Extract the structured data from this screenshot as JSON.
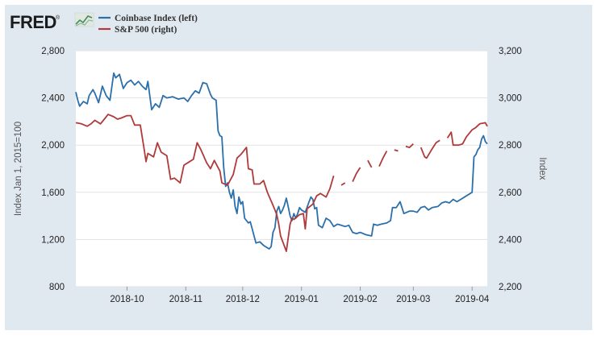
{
  "header": {
    "logo_text": "FRED",
    "logo_registered": "®"
  },
  "chart_data": {
    "type": "line",
    "title": "",
    "ylabel_left": "Index Jan 1, 2015=100",
    "ylabel_right": "Index",
    "ylim_left": [
      800,
      2800
    ],
    "ylim_right": [
      2200,
      3200
    ],
    "yticks_left": [
      "800",
      "1,200",
      "1,600",
      "2,000",
      "2,400",
      "2,800"
    ],
    "yticks_left_values": [
      800,
      1200,
      1600,
      2000,
      2400,
      2800
    ],
    "yticks_right": [
      "2,200",
      "2,400",
      "2,600",
      "2,800",
      "3,000",
      "3,200"
    ],
    "yticks_right_values": [
      2200,
      2400,
      2600,
      2800,
      3000,
      3200
    ],
    "xlim": [
      "2018-09-04",
      "2019-04-09"
    ],
    "xticks": [
      "2018-10",
      "2018-11",
      "2018-12",
      "2019-01",
      "2019-02",
      "2019-03",
      "2019-04"
    ],
    "xticks_dates": [
      "2018-10-01",
      "2018-11-01",
      "2018-12-01",
      "2019-01-01",
      "2019-02-01",
      "2019-03-01",
      "2019-04-01"
    ],
    "grid": true,
    "legend_position": "top-left",
    "series": [
      {
        "name": "Coinbase Index (left)",
        "axis": "left",
        "color": "#2b6fab",
        "points": [
          [
            "2018-09-04",
            2450
          ],
          [
            "2018-09-05",
            2380
          ],
          [
            "2018-09-06",
            2330
          ],
          [
            "2018-09-08",
            2370
          ],
          [
            "2018-09-10",
            2350
          ],
          [
            "2018-09-11",
            2420
          ],
          [
            "2018-09-13",
            2470
          ],
          [
            "2018-09-14",
            2440
          ],
          [
            "2018-09-16",
            2360
          ],
          [
            "2018-09-18",
            2500
          ],
          [
            "2018-09-20",
            2420
          ],
          [
            "2018-09-22",
            2380
          ],
          [
            "2018-09-24",
            2610
          ],
          [
            "2018-09-25",
            2570
          ],
          [
            "2018-09-27",
            2600
          ],
          [
            "2018-09-29",
            2480
          ],
          [
            "2018-10-01",
            2530
          ],
          [
            "2018-10-03",
            2550
          ],
          [
            "2018-10-05",
            2510
          ],
          [
            "2018-10-07",
            2540
          ],
          [
            "2018-10-09",
            2500
          ],
          [
            "2018-10-11",
            2470
          ],
          [
            "2018-10-12",
            2540
          ],
          [
            "2018-10-14",
            2300
          ],
          [
            "2018-10-16",
            2350
          ],
          [
            "2018-10-18",
            2320
          ],
          [
            "2018-10-20",
            2420
          ],
          [
            "2018-10-22",
            2400
          ],
          [
            "2018-10-25",
            2410
          ],
          [
            "2018-10-28",
            2390
          ],
          [
            "2018-10-31",
            2400
          ],
          [
            "2018-11-02",
            2370
          ],
          [
            "2018-11-04",
            2420
          ],
          [
            "2018-11-06",
            2460
          ],
          [
            "2018-11-08",
            2440
          ],
          [
            "2018-11-10",
            2530
          ],
          [
            "2018-11-12",
            2520
          ],
          [
            "2018-11-14",
            2430
          ],
          [
            "2018-11-15",
            2400
          ],
          [
            "2018-11-17",
            2380
          ],
          [
            "2018-11-18",
            2120
          ],
          [
            "2018-11-19",
            2080
          ],
          [
            "2018-11-20",
            2070
          ],
          [
            "2018-11-21",
            1810
          ],
          [
            "2018-11-22",
            1650
          ],
          [
            "2018-11-23",
            1680
          ],
          [
            "2018-11-24",
            1600
          ],
          [
            "2018-11-25",
            1550
          ],
          [
            "2018-11-26",
            1620
          ],
          [
            "2018-11-27",
            1480
          ],
          [
            "2018-11-28",
            1420
          ],
          [
            "2018-11-29",
            1560
          ],
          [
            "2018-11-30",
            1500
          ],
          [
            "2018-12-01",
            1520
          ],
          [
            "2018-12-02",
            1380
          ],
          [
            "2018-12-04",
            1340
          ],
          [
            "2018-12-05",
            1350
          ],
          [
            "2018-12-06",
            1290
          ],
          [
            "2018-12-07",
            1230
          ],
          [
            "2018-12-08",
            1170
          ],
          [
            "2018-12-10",
            1180
          ],
          [
            "2018-12-12",
            1150
          ],
          [
            "2018-12-14",
            1130
          ],
          [
            "2018-12-15",
            1120
          ],
          [
            "2018-12-16",
            1140
          ],
          [
            "2018-12-17",
            1260
          ],
          [
            "2018-12-18",
            1300
          ],
          [
            "2018-12-19",
            1440
          ],
          [
            "2018-12-20",
            1480
          ],
          [
            "2018-12-21",
            1420
          ],
          [
            "2018-12-22",
            1450
          ],
          [
            "2018-12-23",
            1490
          ],
          [
            "2018-12-24",
            1550
          ],
          [
            "2018-12-25",
            1480
          ],
          [
            "2018-12-26",
            1400
          ],
          [
            "2018-12-27",
            1360
          ],
          [
            "2018-12-28",
            1420
          ],
          [
            "2018-12-29",
            1380
          ],
          [
            "2018-12-30",
            1420
          ],
          [
            "2018-12-31",
            1470
          ],
          [
            "2019-01-01",
            1450
          ],
          [
            "2019-01-03",
            1430
          ],
          [
            "2019-01-05",
            1520
          ],
          [
            "2019-01-06",
            1560
          ],
          [
            "2019-01-07",
            1540
          ],
          [
            "2019-01-08",
            1460
          ],
          [
            "2019-01-09",
            1470
          ],
          [
            "2019-01-10",
            1320
          ],
          [
            "2019-01-12",
            1300
          ],
          [
            "2019-01-14",
            1380
          ],
          [
            "2019-01-16",
            1360
          ],
          [
            "2019-01-18",
            1310
          ],
          [
            "2019-01-20",
            1330
          ],
          [
            "2019-01-22",
            1320
          ],
          [
            "2019-01-24",
            1310
          ],
          [
            "2019-01-26",
            1320
          ],
          [
            "2019-01-28",
            1260
          ],
          [
            "2019-01-30",
            1250
          ],
          [
            "2019-02-01",
            1260
          ],
          [
            "2019-02-04",
            1240
          ],
          [
            "2019-02-07",
            1230
          ],
          [
            "2019-02-08",
            1330
          ],
          [
            "2019-02-10",
            1320
          ],
          [
            "2019-02-12",
            1330
          ],
          [
            "2019-02-15",
            1340
          ],
          [
            "2019-02-17",
            1360
          ],
          [
            "2019-02-18",
            1470
          ],
          [
            "2019-02-20",
            1470
          ],
          [
            "2019-02-22",
            1520
          ],
          [
            "2019-02-24",
            1420
          ],
          [
            "2019-02-27",
            1440
          ],
          [
            "2019-03-01",
            1440
          ],
          [
            "2019-03-03",
            1430
          ],
          [
            "2019-03-05",
            1470
          ],
          [
            "2019-03-07",
            1480
          ],
          [
            "2019-03-09",
            1450
          ],
          [
            "2019-03-11",
            1470
          ],
          [
            "2019-03-14",
            1480
          ],
          [
            "2019-03-16",
            1510
          ],
          [
            "2019-03-18",
            1520
          ],
          [
            "2019-03-20",
            1510
          ],
          [
            "2019-03-22",
            1540
          ],
          [
            "2019-03-24",
            1520
          ],
          [
            "2019-03-26",
            1540
          ],
          [
            "2019-03-28",
            1560
          ],
          [
            "2019-03-30",
            1580
          ],
          [
            "2019-04-01",
            1600
          ],
          [
            "2019-04-02",
            1900
          ],
          [
            "2019-04-03",
            1920
          ],
          [
            "2019-04-04",
            1960
          ],
          [
            "2019-04-05",
            1980
          ],
          [
            "2019-04-06",
            2050
          ],
          [
            "2019-04-07",
            2080
          ],
          [
            "2019-04-08",
            2030
          ],
          [
            "2019-04-09",
            2010
          ]
        ]
      },
      {
        "name": "S&P 500 (right)",
        "axis": "right",
        "color": "#b03a3a",
        "points": [
          [
            "2018-09-04",
            2895
          ],
          [
            "2018-09-07",
            2890
          ],
          [
            "2018-09-10",
            2880
          ],
          [
            "2018-09-12",
            2890
          ],
          [
            "2018-09-14",
            2905
          ],
          [
            "2018-09-17",
            2890
          ],
          [
            "2018-09-19",
            2910
          ],
          [
            "2018-09-21",
            2930
          ],
          [
            "2018-09-24",
            2920
          ],
          [
            "2018-09-26",
            2910
          ],
          [
            "2018-09-28",
            2915
          ],
          [
            "2018-10-01",
            2925
          ],
          [
            "2018-10-03",
            2925
          ],
          [
            "2018-10-05",
            2885
          ],
          [
            "2018-10-08",
            2885
          ],
          [
            "2018-10-10",
            2785
          ],
          [
            "2018-10-11",
            2730
          ],
          [
            "2018-10-12",
            2765
          ],
          [
            "2018-10-15",
            2750
          ],
          [
            "2018-10-17",
            2810
          ],
          [
            "2018-10-19",
            2770
          ],
          [
            "2018-10-22",
            2755
          ],
          [
            "2018-10-24",
            2655
          ],
          [
            "2018-10-26",
            2660
          ],
          [
            "2018-10-29",
            2640
          ],
          [
            "2018-10-31",
            2715
          ],
          [
            "2018-11-02",
            2725
          ],
          [
            "2018-11-05",
            2740
          ],
          [
            "2018-11-07",
            2810
          ],
          [
            "2018-11-09",
            2780
          ],
          [
            "2018-11-12",
            2725
          ],
          [
            "2018-11-14",
            2700
          ],
          [
            "2018-11-16",
            2735
          ],
          [
            "2018-11-19",
            2690
          ],
          [
            "2018-11-20",
            2640
          ],
          [
            "2018-11-23",
            2630
          ],
          [
            "2018-11-26",
            2675
          ],
          [
            "2018-11-28",
            2745
          ],
          [
            "2018-11-30",
            2760
          ],
          [
            "2018-12-03",
            2790
          ],
          [
            "2018-12-04",
            2700
          ],
          [
            "2018-12-06",
            2695
          ],
          [
            "2018-12-07",
            2635
          ],
          [
            "2018-12-10",
            2635
          ],
          [
            "2018-12-12",
            2650
          ],
          [
            "2018-12-14",
            2600
          ],
          [
            "2018-12-17",
            2545
          ],
          [
            "2018-12-19",
            2505
          ],
          [
            "2018-12-20",
            2465
          ],
          [
            "2018-12-21",
            2415
          ],
          [
            "2018-12-24",
            2350
          ],
          [
            "2018-12-26",
            2465
          ],
          [
            "2018-12-27",
            2490
          ],
          [
            "2018-12-28",
            2485
          ],
          [
            "2018-12-31",
            2505
          ],
          [
            "2019-01-02",
            2510
          ],
          [
            "2019-01-03",
            2445
          ],
          [
            "2019-01-04",
            2530
          ],
          [
            "2019-01-07",
            2550
          ],
          [
            "2019-01-09",
            2585
          ],
          [
            "2019-01-11",
            2595
          ],
          [
            "2019-01-14",
            2580
          ],
          [
            "2019-01-16",
            2615
          ],
          [
            "2019-01-18",
            2670
          ],
          [
            "2019-01-22",
            2630
          ],
          [
            "2019-01-24",
            2640
          ],
          [
            "2019-01-28",
            2645
          ],
          [
            "2019-01-30",
            2680
          ],
          [
            "2019-02-01",
            2705
          ],
          [
            "2019-02-05",
            2735
          ],
          [
            "2019-02-07",
            2705
          ],
          [
            "2019-02-11",
            2710
          ],
          [
            "2019-02-13",
            2745
          ],
          [
            "2019-02-15",
            2775
          ],
          [
            "2019-02-19",
            2780
          ],
          [
            "2019-02-21",
            2775
          ],
          [
            "2019-02-25",
            2795
          ],
          [
            "2019-02-27",
            2790
          ],
          [
            "2019-03-01",
            2805
          ],
          [
            "2019-03-05",
            2790
          ],
          [
            "2019-03-07",
            2750
          ],
          [
            "2019-03-08",
            2745
          ],
          [
            "2019-03-11",
            2785
          ],
          [
            "2019-03-13",
            2810
          ],
          [
            "2019-03-15",
            2820
          ],
          [
            "2019-03-19",
            2830
          ],
          [
            "2019-03-21",
            2855
          ],
          [
            "2019-03-22",
            2800
          ],
          [
            "2019-03-25",
            2800
          ],
          [
            "2019-03-27",
            2805
          ],
          [
            "2019-03-29",
            2835
          ],
          [
            "2019-04-01",
            2865
          ],
          [
            "2019-04-03",
            2875
          ],
          [
            "2019-04-05",
            2890
          ],
          [
            "2019-04-08",
            2895
          ],
          [
            "2019-04-09",
            2880
          ]
        ]
      }
    ]
  }
}
